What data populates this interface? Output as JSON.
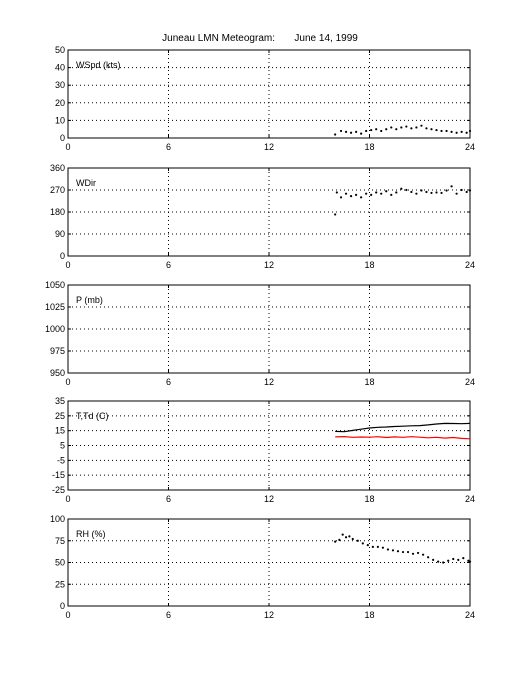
{
  "title": "Juneau LMN Meteogram:       June 14, 1999",
  "chart_data": [
    {
      "type": "scatter",
      "label": "WSpd (kts)",
      "xlim": [
        0,
        24
      ],
      "x_ticks": [
        0,
        6,
        12,
        18,
        24
      ],
      "ylim": [
        0,
        50
      ],
      "y_ticks": [
        0,
        10,
        20,
        30,
        40,
        50
      ],
      "grid": true,
      "series": [
        {
          "color": "#000000",
          "x": [
            15.95,
            16.3,
            16.6,
            16.9,
            17.2,
            17.5,
            17.8,
            18.1,
            18.4,
            18.7,
            19.0,
            19.3,
            19.6,
            19.9,
            20.2,
            20.5,
            20.8,
            21.1,
            21.4,
            21.7,
            22.0,
            22.3,
            22.6,
            22.9,
            23.2,
            23.5,
            23.8,
            24.0
          ],
          "y": [
            2,
            4,
            3.5,
            3,
            3.5,
            2.5,
            4,
            4.5,
            5,
            4,
            5,
            6,
            5,
            6,
            6.5,
            5.5,
            6,
            7,
            5.5,
            5,
            4.5,
            4,
            4,
            3.5,
            3,
            3.5,
            3,
            4
          ]
        }
      ]
    },
    {
      "type": "scatter",
      "label": "WDir",
      "xlim": [
        0,
        24
      ],
      "x_ticks": [
        0,
        6,
        12,
        18,
        24
      ],
      "ylim": [
        0,
        360
      ],
      "y_ticks": [
        0,
        90,
        180,
        270,
        360
      ],
      "grid": true,
      "series": [
        {
          "color": "#000000",
          "x": [
            15.95,
            16.05,
            16.3,
            16.6,
            16.9,
            17.2,
            17.5,
            17.8,
            18.1,
            18.4,
            18.7,
            19.0,
            19.3,
            19.6,
            19.9,
            20.2,
            20.5,
            20.8,
            21.1,
            21.4,
            21.7,
            22.0,
            22.3,
            22.6,
            22.9,
            23.2,
            23.5,
            23.8,
            24.0
          ],
          "y": [
            170,
            260,
            240,
            255,
            245,
            250,
            240,
            255,
            250,
            260,
            255,
            265,
            250,
            260,
            275,
            270,
            262,
            255,
            268,
            262,
            258,
            260,
            258,
            268,
            285,
            255,
            270,
            262,
            268
          ]
        }
      ]
    },
    {
      "type": "scatter",
      "label": "P (mb)",
      "xlim": [
        0,
        24
      ],
      "x_ticks": [
        0,
        6,
        12,
        18,
        24
      ],
      "ylim": [
        950,
        1050
      ],
      "y_ticks": [
        950,
        975,
        1000,
        1025,
        1050
      ],
      "grid": true,
      "series": []
    },
    {
      "type": "line",
      "label": "T,Td (C)",
      "xlim": [
        0,
        24
      ],
      "x_ticks": [
        0,
        6,
        12,
        18,
        24
      ],
      "ylim": [
        -25,
        35
      ],
      "y_ticks": [
        -25,
        -15,
        -5,
        5,
        15,
        25,
        35
      ],
      "grid": true,
      "series": [
        {
          "color": "#000000",
          "x": [
            15.95,
            16.5,
            17.0,
            17.5,
            18.0,
            18.5,
            19.0,
            19.5,
            20.0,
            20.5,
            21.0,
            21.5,
            22.0,
            22.5,
            23.0,
            23.5,
            24.0
          ],
          "y": [
            14.5,
            14.3,
            15.2,
            16.0,
            16.8,
            17.3,
            17.5,
            17.8,
            18.0,
            18.3,
            18.4,
            18.9,
            19.5,
            19.9,
            19.8,
            19.7,
            19.9
          ]
        },
        {
          "color": "#ff0000",
          "x": [
            15.95,
            16.5,
            17.0,
            17.5,
            18.0,
            18.5,
            19.0,
            19.5,
            20.0,
            20.5,
            21.0,
            21.5,
            22.0,
            22.5,
            23.0,
            23.5,
            24.0
          ],
          "y": [
            10.8,
            11.0,
            10.5,
            10.7,
            10.6,
            10.9,
            10.4,
            10.8,
            10.5,
            10.9,
            10.6,
            10.2,
            10.5,
            10.0,
            10.4,
            9.8,
            9.5
          ]
        }
      ]
    },
    {
      "type": "scatter",
      "label": "RH (%)",
      "xlim": [
        0,
        24
      ],
      "x_ticks": [
        0,
        6,
        12,
        18,
        24
      ],
      "ylim": [
        0,
        100
      ],
      "y_ticks": [
        0,
        25,
        50,
        75,
        100
      ],
      "grid": true,
      "series": [
        {
          "color": "#000000",
          "x": [
            15.95,
            16.2,
            16.4,
            16.6,
            16.8,
            17.0,
            17.3,
            17.6,
            17.9,
            18.2,
            18.5,
            18.8,
            19.1,
            19.4,
            19.7,
            20.0,
            20.3,
            20.6,
            20.9,
            21.2,
            21.5,
            21.8,
            22.1,
            22.4,
            22.7,
            23.0,
            23.3,
            23.6,
            23.9,
            24.0
          ],
          "y": [
            74,
            76,
            82,
            79,
            80,
            77,
            75,
            72,
            70,
            68,
            68,
            67,
            65,
            64,
            63,
            62,
            62,
            60,
            61,
            59,
            56,
            53,
            51,
            50,
            52,
            54,
            53,
            55,
            52,
            51
          ]
        }
      ]
    }
  ]
}
